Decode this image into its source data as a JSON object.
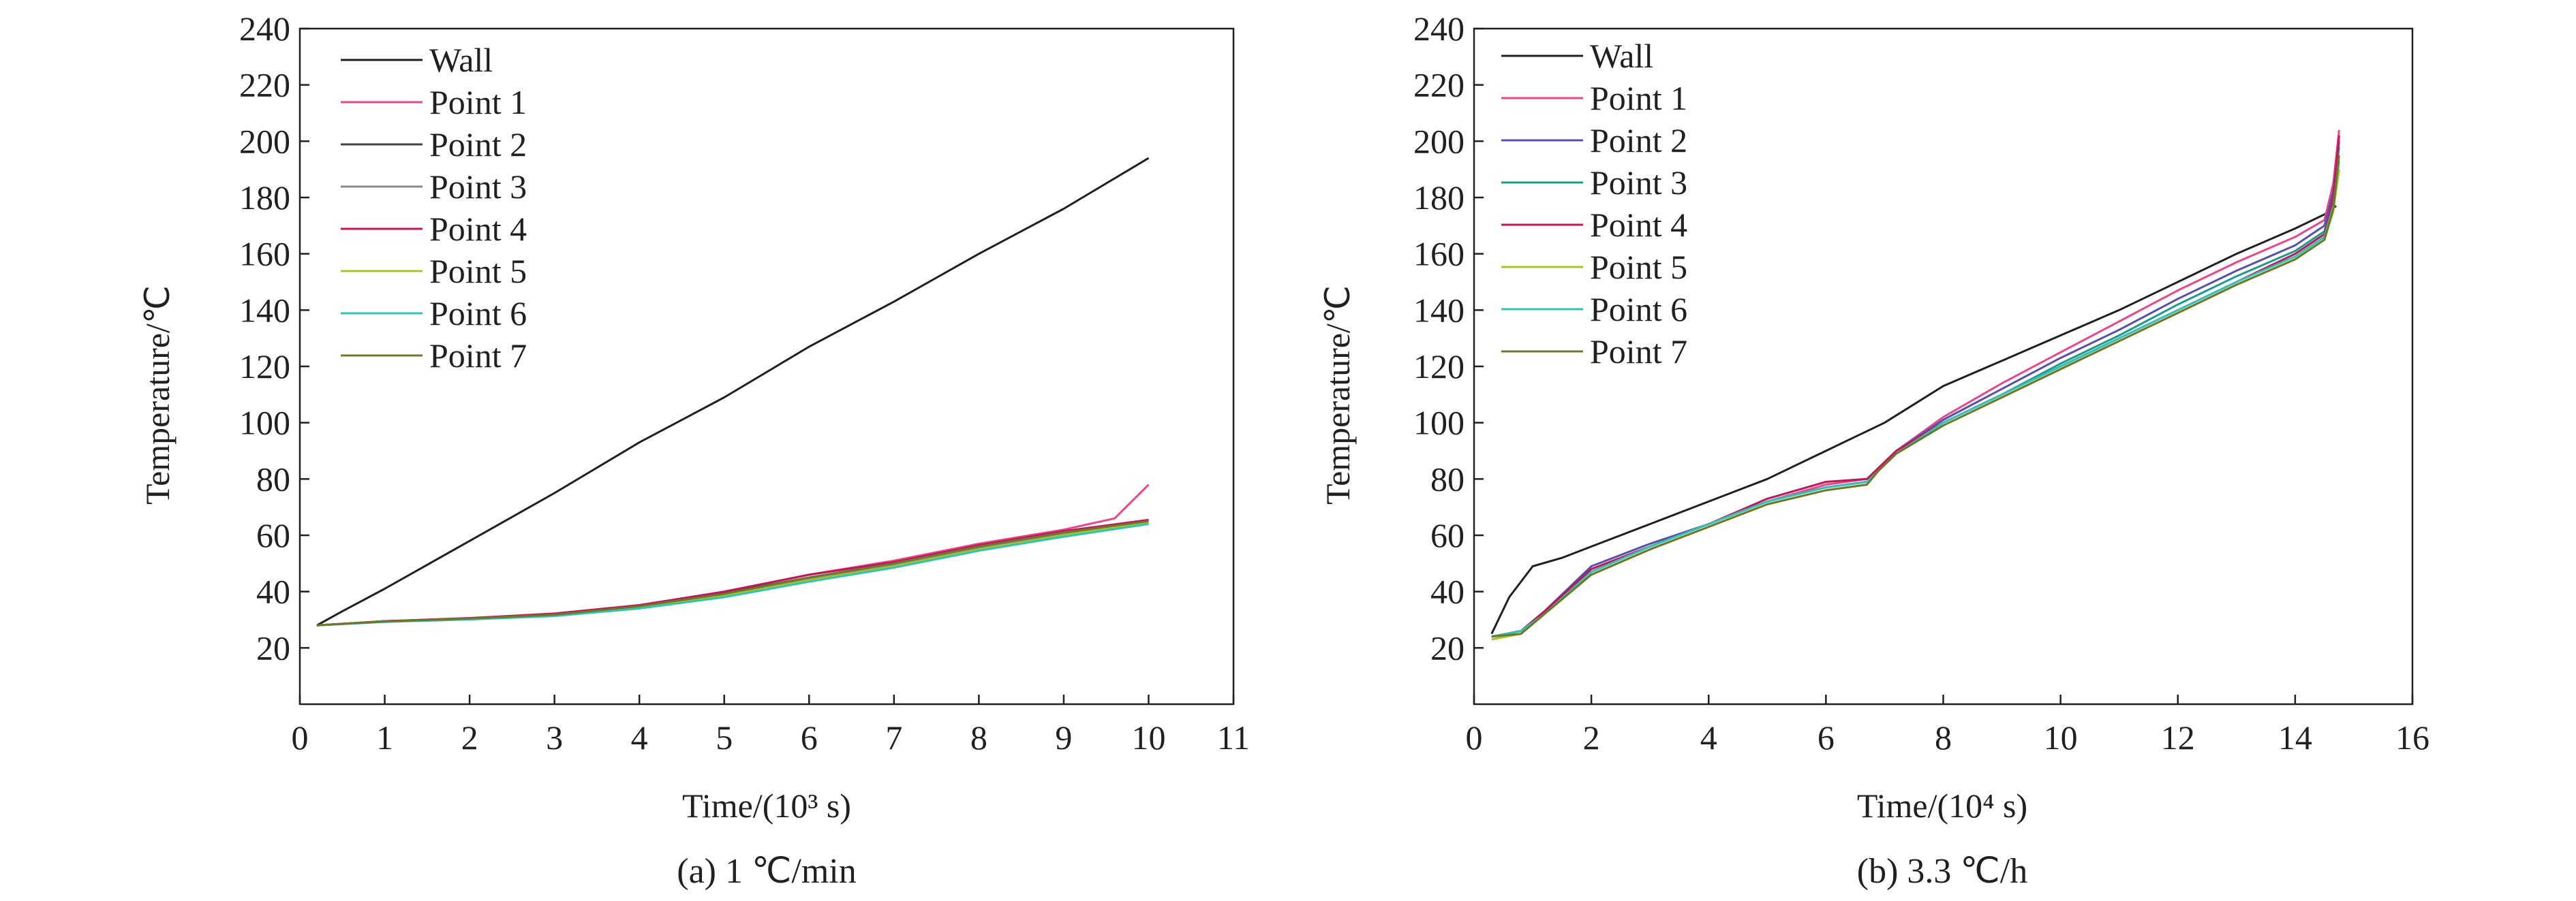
{
  "chart_data": [
    {
      "type": "line",
      "caption": "(a) 1 ℃/min",
      "xlabel": "Time/(10³ s)",
      "ylabel": "Temperature/℃",
      "xlim": [
        0,
        11
      ],
      "ylim": [
        0,
        240
      ],
      "xticks": [
        0,
        1,
        2,
        3,
        4,
        5,
        6,
        7,
        8,
        9,
        10,
        11
      ],
      "yticks": [
        20,
        40,
        60,
        80,
        100,
        120,
        140,
        160,
        180,
        200,
        220,
        240
      ],
      "grid": false,
      "legend_position": "top-left",
      "series": [
        {
          "name": "Wall",
          "color": "#231f20",
          "x": [
            0.2,
            0.5,
            1,
            2,
            3,
            4,
            5,
            6,
            7,
            8,
            9,
            10
          ],
          "y": [
            28,
            33,
            41,
            58,
            75,
            93,
            109,
            127,
            143,
            160,
            176,
            194
          ]
        },
        {
          "name": "Point 1",
          "color": "#e8488b",
          "x": [
            0.2,
            1,
            2,
            3,
            4,
            5,
            6,
            7,
            8,
            9,
            9.6,
            9.8,
            10
          ],
          "y": [
            28,
            29.5,
            30.5,
            32,
            35,
            40,
            46,
            51,
            57,
            62,
            66,
            72,
            78
          ]
        },
        {
          "name": "Point 2",
          "color": "#444444",
          "x": [
            0.2,
            1,
            2,
            3,
            4,
            5,
            6,
            7,
            8,
            9,
            10
          ],
          "y": [
            28,
            29.5,
            30.5,
            32,
            35,
            39.5,
            45,
            50,
            56,
            61,
            65
          ]
        },
        {
          "name": "Point 3",
          "color": "#8a8a8a",
          "x": [
            0.2,
            1,
            2,
            3,
            4,
            5,
            6,
            7,
            8,
            9,
            10
          ],
          "y": [
            28,
            29.4,
            30.3,
            31.6,
            34.5,
            39,
            44.5,
            49.5,
            55.5,
            60.5,
            64.5
          ]
        },
        {
          "name": "Point 4",
          "color": "#c4145a",
          "x": [
            0.2,
            1,
            2,
            3,
            4,
            5,
            6,
            7,
            8,
            9,
            10
          ],
          "y": [
            28,
            29.5,
            30.6,
            32.2,
            35.2,
            40,
            46,
            50.5,
            56.5,
            61.5,
            65.5
          ]
        },
        {
          "name": "Point 5",
          "color": "#a7c520",
          "x": [
            0.2,
            1,
            2,
            3,
            4,
            5,
            6,
            7,
            8,
            9,
            10
          ],
          "y": [
            28,
            29.3,
            30.2,
            31.5,
            34.2,
            38.5,
            44,
            49,
            55,
            60,
            64.5
          ]
        },
        {
          "name": "Point 6",
          "color": "#2ec4b6",
          "x": [
            0.2,
            1,
            2,
            3,
            4,
            5,
            6,
            7,
            8,
            9,
            10
          ],
          "y": [
            28,
            29.2,
            30.1,
            31.3,
            34,
            38,
            43.5,
            48.5,
            54.5,
            59.5,
            64
          ]
        },
        {
          "name": "Point 7",
          "color": "#6b7a2a",
          "x": [
            0.2,
            1,
            2,
            3,
            4,
            5,
            6,
            7,
            8,
            9,
            10
          ],
          "y": [
            28,
            29.4,
            30.4,
            31.8,
            34.8,
            39.2,
            45,
            50,
            56,
            61,
            65
          ]
        }
      ]
    },
    {
      "type": "line",
      "caption": "(b) 3.3 ℃/h",
      "xlabel": "Time/(10⁴ s)",
      "ylabel": "Temperature/℃",
      "xlim": [
        0,
        16
      ],
      "ylim": [
        0,
        240
      ],
      "xticks": [
        0,
        2,
        4,
        6,
        8,
        10,
        12,
        14,
        16
      ],
      "yticks": [
        20,
        40,
        60,
        80,
        100,
        120,
        140,
        160,
        180,
        200,
        220,
        240
      ],
      "grid": false,
      "legend_position": "top-left",
      "series": [
        {
          "name": "Wall",
          "color": "#231f20",
          "x": [
            0.3,
            0.6,
            1,
            1.5,
            2,
            3,
            4,
            5,
            6,
            6.6,
            7,
            8,
            9,
            10,
            11,
            12,
            13,
            14,
            14.5,
            14.7
          ],
          "y": [
            25,
            38,
            49,
            52,
            56,
            64,
            72,
            80,
            90,
            96,
            100,
            113,
            122,
            131,
            140,
            150,
            160,
            169,
            174,
            177
          ]
        },
        {
          "name": "Point 1",
          "color": "#e8488b",
          "x": [
            0.3,
            0.8,
            1.2,
            2,
            3,
            4,
            5,
            6,
            6.7,
            6.9,
            7.2,
            8,
            9,
            10,
            11,
            12,
            13,
            14,
            14.5,
            14.65,
            14.75
          ],
          "y": [
            24,
            26,
            33,
            48,
            56,
            64,
            72,
            78,
            80,
            84,
            90,
            102,
            114,
            125,
            136,
            147,
            157,
            166,
            172,
            185,
            204
          ]
        },
        {
          "name": "Point 2",
          "color": "#5a4fa8",
          "x": [
            0.3,
            0.8,
            1.2,
            2,
            3,
            4,
            5,
            6,
            6.7,
            6.9,
            7.2,
            8,
            9,
            10,
            11,
            12,
            13,
            14,
            14.5,
            14.65,
            14.75
          ],
          "y": [
            24,
            26,
            33,
            49,
            57,
            64,
            72,
            77,
            79,
            84,
            90,
            101,
            112,
            123,
            133,
            144,
            154,
            163,
            170,
            182,
            200
          ]
        },
        {
          "name": "Point 3",
          "color": "#1c9b8e",
          "x": [
            0.3,
            0.8,
            1.2,
            2,
            3,
            4,
            5,
            6,
            6.7,
            6.9,
            7.2,
            8,
            9,
            10,
            11,
            12,
            13,
            14,
            14.5,
            14.65,
            14.75
          ],
          "y": [
            24,
            26,
            33,
            47,
            56,
            64,
            72,
            77,
            79,
            84,
            90,
            100,
            110,
            121,
            131,
            142,
            152,
            161,
            168,
            180,
            198
          ]
        },
        {
          "name": "Point 4",
          "color": "#c4145a",
          "x": [
            0.3,
            0.8,
            1.2,
            2,
            3,
            4,
            5,
            6,
            6.7,
            6.9,
            7.2,
            8,
            9,
            10,
            11,
            12,
            13,
            14,
            14.5,
            14.65,
            14.75
          ],
          "y": [
            24,
            26,
            33,
            48,
            56,
            64,
            73,
            79,
            80,
            84,
            90,
            100,
            110,
            120,
            130,
            140,
            150,
            160,
            167,
            180,
            202
          ]
        },
        {
          "name": "Point 5",
          "color": "#a7c520",
          "x": [
            0.3,
            0.8,
            1.2,
            2,
            3,
            4,
            5,
            6,
            6.7,
            6.9,
            7.2,
            8,
            9,
            10,
            11,
            12,
            13,
            14,
            14.5,
            14.65,
            14.75
          ],
          "y": [
            23,
            25,
            32,
            46,
            55,
            63,
            71,
            76,
            78,
            83,
            89,
            99,
            109,
            119,
            129,
            139,
            149,
            158,
            165,
            175,
            190
          ]
        },
        {
          "name": "Point 6",
          "color": "#2ec4b6",
          "x": [
            0.3,
            0.8,
            1.2,
            2,
            3,
            4,
            5,
            6,
            6.7,
            6.9,
            7.2,
            8,
            9,
            10,
            11,
            12,
            13,
            14,
            14.5,
            14.65,
            14.75
          ],
          "y": [
            24,
            26,
            32,
            47,
            56,
            64,
            72,
            77,
            79,
            83,
            89,
            100,
            110,
            120,
            130,
            140,
            150,
            159,
            166,
            177,
            193
          ]
        },
        {
          "name": "Point 7",
          "color": "#6b7a2a",
          "x": [
            0.3,
            0.8,
            1.2,
            2,
            3,
            4,
            5,
            6,
            6.7,
            6.9,
            7.2,
            8,
            9,
            10,
            11,
            12,
            13,
            14,
            14.5,
            14.65,
            14.75
          ],
          "y": [
            24,
            25,
            32,
            46,
            55,
            63,
            71,
            76,
            78,
            83,
            89,
            99,
            109,
            119,
            129,
            139,
            149,
            158,
            165,
            176,
            195
          ]
        }
      ]
    }
  ]
}
